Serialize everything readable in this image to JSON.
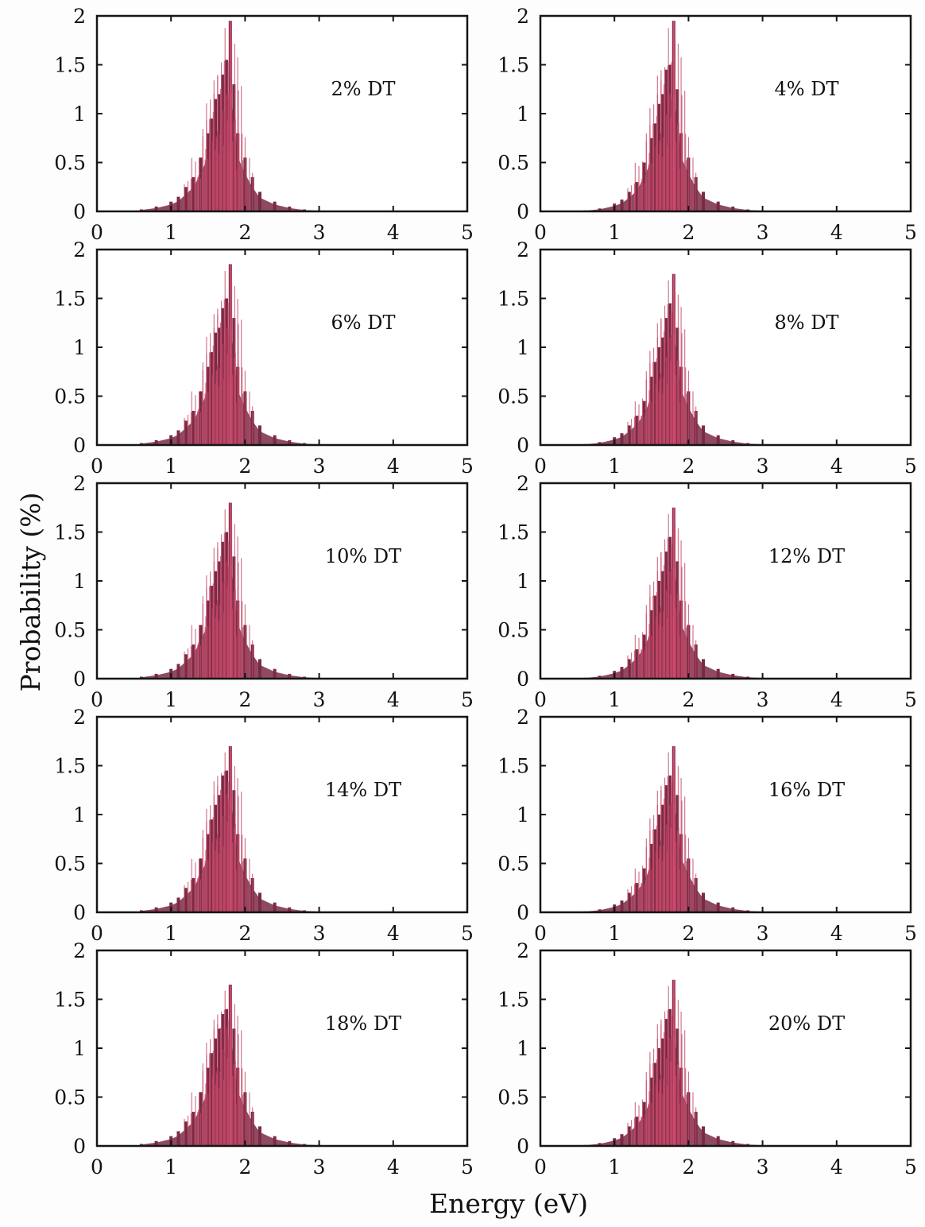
{
  "figure": {
    "xlabel": "Energy (eV)",
    "ylabel": "Probability (%)"
  },
  "chart_data": [
    {
      "type": "bar",
      "label": "2% DT",
      "x_ticks": [
        "0",
        "1",
        "2",
        "3",
        "4",
        "5"
      ],
      "y_ticks": [
        "0",
        "0.5",
        "1",
        "1.5",
        "2"
      ],
      "xlim": [
        0,
        5
      ],
      "ylim": [
        0,
        2
      ],
      "bar_color": "#7a2a45",
      "peak_energy": 1.8,
      "peak_value": 1.95,
      "x": [
        0.6,
        0.8,
        1.0,
        1.1,
        1.2,
        1.3,
        1.4,
        1.5,
        1.55,
        1.6,
        1.65,
        1.7,
        1.75,
        1.8,
        1.85,
        1.9,
        2.0,
        2.1,
        2.2,
        2.4,
        2.6,
        2.8,
        3.0
      ],
      "values": [
        0.02,
        0.05,
        0.1,
        0.15,
        0.25,
        0.35,
        0.55,
        0.8,
        0.95,
        1.15,
        1.2,
        1.4,
        1.55,
        1.95,
        1.3,
        0.8,
        0.55,
        0.35,
        0.2,
        0.1,
        0.05,
        0.02,
        0.01
      ]
    },
    {
      "type": "bar",
      "label": "4% DT",
      "x_ticks": [
        "0",
        "1",
        "2",
        "3",
        "4",
        "5"
      ],
      "y_ticks": [
        "0",
        "0.5",
        "1",
        "1.5",
        "2"
      ],
      "xlim": [
        0,
        5
      ],
      "ylim": [
        0,
        2
      ],
      "bar_color": "#7a2a45",
      "peak_energy": 1.8,
      "peak_value": 1.95,
      "x": [
        0.6,
        0.8,
        1.0,
        1.1,
        1.2,
        1.3,
        1.4,
        1.5,
        1.55,
        1.6,
        1.65,
        1.7,
        1.75,
        1.8,
        1.85,
        1.9,
        2.0,
        2.1,
        2.2,
        2.4,
        2.6,
        2.8,
        3.0
      ],
      "values": [
        0.01,
        0.03,
        0.08,
        0.12,
        0.2,
        0.3,
        0.5,
        0.75,
        0.9,
        1.1,
        1.2,
        1.45,
        1.5,
        1.95,
        1.25,
        0.8,
        0.55,
        0.35,
        0.2,
        0.1,
        0.05,
        0.02,
        0.01
      ]
    },
    {
      "type": "bar",
      "label": "6% DT",
      "x_ticks": [
        "0",
        "1",
        "2",
        "3",
        "4",
        "5"
      ],
      "y_ticks": [
        "0",
        "0.5",
        "1",
        "1.5",
        "2"
      ],
      "xlim": [
        0,
        5
      ],
      "ylim": [
        0,
        2
      ],
      "bar_color": "#7a2a45",
      "peak_energy": 1.8,
      "peak_value": 1.85,
      "x": [
        0.6,
        0.8,
        1.0,
        1.1,
        1.2,
        1.3,
        1.4,
        1.5,
        1.55,
        1.6,
        1.65,
        1.7,
        1.75,
        1.8,
        1.85,
        1.9,
        2.0,
        2.1,
        2.2,
        2.4,
        2.6,
        2.8,
        3.0
      ],
      "values": [
        0.02,
        0.05,
        0.1,
        0.15,
        0.25,
        0.35,
        0.55,
        0.8,
        0.95,
        1.15,
        1.2,
        1.4,
        1.5,
        1.85,
        1.3,
        0.8,
        0.55,
        0.35,
        0.2,
        0.1,
        0.05,
        0.02,
        0.01
      ]
    },
    {
      "type": "bar",
      "label": "8% DT",
      "x_ticks": [
        "0",
        "1",
        "2",
        "3",
        "4",
        "5"
      ],
      "y_ticks": [
        "0",
        "0.5",
        "1",
        "1.5",
        "2"
      ],
      "xlim": [
        0,
        5
      ],
      "ylim": [
        0,
        2
      ],
      "bar_color": "#7a2a45",
      "peak_energy": 1.8,
      "peak_value": 1.75,
      "x": [
        0.6,
        0.8,
        1.0,
        1.1,
        1.2,
        1.3,
        1.4,
        1.5,
        1.55,
        1.6,
        1.65,
        1.7,
        1.75,
        1.8,
        1.85,
        1.9,
        2.0,
        2.1,
        2.2,
        2.4,
        2.6,
        2.8,
        3.0
      ],
      "values": [
        0.01,
        0.03,
        0.08,
        0.12,
        0.2,
        0.3,
        0.45,
        0.7,
        0.85,
        1.0,
        1.1,
        1.3,
        1.45,
        1.75,
        1.2,
        0.8,
        0.55,
        0.35,
        0.2,
        0.1,
        0.05,
        0.02,
        0.01
      ]
    },
    {
      "type": "bar",
      "label": "10% DT",
      "x_ticks": [
        "0",
        "1",
        "2",
        "3",
        "4",
        "5"
      ],
      "y_ticks": [
        "0",
        "0.5",
        "1",
        "1.5",
        "2"
      ],
      "xlim": [
        0,
        5
      ],
      "ylim": [
        0,
        2
      ],
      "bar_color": "#7a2a45",
      "peak_energy": 1.8,
      "peak_value": 1.8,
      "x": [
        0.6,
        0.8,
        1.0,
        1.1,
        1.2,
        1.3,
        1.4,
        1.5,
        1.55,
        1.6,
        1.65,
        1.7,
        1.75,
        1.8,
        1.85,
        1.9,
        2.0,
        2.1,
        2.2,
        2.4,
        2.6,
        2.8,
        3.0
      ],
      "values": [
        0.02,
        0.05,
        0.1,
        0.15,
        0.25,
        0.35,
        0.55,
        0.8,
        0.95,
        1.1,
        1.2,
        1.4,
        1.5,
        1.8,
        1.25,
        0.8,
        0.55,
        0.35,
        0.2,
        0.1,
        0.05,
        0.02,
        0.01
      ]
    },
    {
      "type": "bar",
      "label": "12% DT",
      "x_ticks": [
        "0",
        "1",
        "2",
        "3",
        "4",
        "5"
      ],
      "y_ticks": [
        "0",
        "0.5",
        "1",
        "1.5",
        "2"
      ],
      "xlim": [
        0,
        5
      ],
      "ylim": [
        0,
        2
      ],
      "bar_color": "#7a2a45",
      "peak_energy": 1.8,
      "peak_value": 1.75,
      "x": [
        0.6,
        0.8,
        1.0,
        1.1,
        1.2,
        1.3,
        1.4,
        1.5,
        1.55,
        1.6,
        1.65,
        1.7,
        1.75,
        1.8,
        1.85,
        1.9,
        2.0,
        2.1,
        2.2,
        2.4,
        2.6,
        2.8,
        3.0
      ],
      "values": [
        0.01,
        0.03,
        0.08,
        0.12,
        0.2,
        0.3,
        0.45,
        0.7,
        0.85,
        1.0,
        1.1,
        1.3,
        1.45,
        1.75,
        1.2,
        0.8,
        0.55,
        0.35,
        0.2,
        0.1,
        0.05,
        0.02,
        0.01
      ]
    },
    {
      "type": "bar",
      "label": "14% DT",
      "x_ticks": [
        "0",
        "1",
        "2",
        "3",
        "4",
        "5"
      ],
      "y_ticks": [
        "0",
        "0.5",
        "1",
        "1.5",
        "2"
      ],
      "xlim": [
        0,
        5
      ],
      "ylim": [
        0,
        2
      ],
      "bar_color": "#7a2a45",
      "peak_energy": 1.8,
      "peak_value": 1.7,
      "x": [
        0.6,
        0.8,
        1.0,
        1.1,
        1.2,
        1.3,
        1.4,
        1.5,
        1.55,
        1.6,
        1.65,
        1.7,
        1.75,
        1.8,
        1.85,
        1.9,
        2.0,
        2.1,
        2.2,
        2.4,
        2.6,
        2.8,
        3.0
      ],
      "values": [
        0.02,
        0.05,
        0.1,
        0.15,
        0.25,
        0.35,
        0.55,
        0.8,
        0.95,
        1.1,
        1.2,
        1.4,
        1.45,
        1.7,
        1.25,
        0.8,
        0.55,
        0.35,
        0.2,
        0.1,
        0.05,
        0.02,
        0.01
      ]
    },
    {
      "type": "bar",
      "label": "16% DT",
      "x_ticks": [
        "0",
        "1",
        "2",
        "3",
        "4",
        "5"
      ],
      "y_ticks": [
        "0",
        "0.5",
        "1",
        "1.5",
        "2"
      ],
      "xlim": [
        0,
        5
      ],
      "ylim": [
        0,
        2
      ],
      "bar_color": "#7a2a45",
      "peak_energy": 1.8,
      "peak_value": 1.7,
      "x": [
        0.6,
        0.8,
        1.0,
        1.1,
        1.2,
        1.3,
        1.4,
        1.5,
        1.55,
        1.6,
        1.65,
        1.7,
        1.75,
        1.8,
        1.85,
        1.9,
        2.0,
        2.1,
        2.2,
        2.4,
        2.6,
        2.8,
        3.0
      ],
      "values": [
        0.01,
        0.03,
        0.08,
        0.12,
        0.2,
        0.3,
        0.45,
        0.7,
        0.85,
        1.0,
        1.1,
        1.3,
        1.4,
        1.7,
        1.2,
        0.8,
        0.55,
        0.35,
        0.2,
        0.1,
        0.05,
        0.02,
        0.01
      ]
    },
    {
      "type": "bar",
      "label": "18% DT",
      "x_ticks": [
        "0",
        "1",
        "2",
        "3",
        "4",
        "5"
      ],
      "y_ticks": [
        "0",
        "0.5",
        "1",
        "1.5",
        "2"
      ],
      "xlim": [
        0,
        5
      ],
      "ylim": [
        0,
        2
      ],
      "bar_color": "#7a2a45",
      "peak_energy": 1.8,
      "peak_value": 1.65,
      "x": [
        0.6,
        0.8,
        1.0,
        1.1,
        1.2,
        1.3,
        1.4,
        1.5,
        1.55,
        1.6,
        1.65,
        1.7,
        1.75,
        1.8,
        1.85,
        1.9,
        2.0,
        2.1,
        2.2,
        2.4,
        2.6,
        2.8,
        3.0
      ],
      "values": [
        0.02,
        0.05,
        0.1,
        0.15,
        0.25,
        0.35,
        0.55,
        0.8,
        0.95,
        1.1,
        1.2,
        1.35,
        1.4,
        1.65,
        1.2,
        0.8,
        0.55,
        0.35,
        0.2,
        0.1,
        0.05,
        0.02,
        0.01
      ]
    },
    {
      "type": "bar",
      "label": "20% DT",
      "x_ticks": [
        "0",
        "1",
        "2",
        "3",
        "4",
        "5"
      ],
      "y_ticks": [
        "0",
        "0.5",
        "1",
        "1.5",
        "2"
      ],
      "xlim": [
        0,
        5
      ],
      "ylim": [
        0,
        2
      ],
      "bar_color": "#7a2a45",
      "peak_energy": 1.8,
      "peak_value": 1.7,
      "x": [
        0.6,
        0.8,
        1.0,
        1.1,
        1.2,
        1.3,
        1.4,
        1.5,
        1.55,
        1.6,
        1.65,
        1.7,
        1.75,
        1.8,
        1.85,
        1.9,
        2.0,
        2.1,
        2.2,
        2.4,
        2.6,
        2.8,
        3.0
      ],
      "values": [
        0.01,
        0.03,
        0.08,
        0.12,
        0.2,
        0.3,
        0.45,
        0.7,
        0.85,
        1.0,
        1.1,
        1.3,
        1.4,
        1.7,
        1.2,
        0.8,
        0.55,
        0.35,
        0.2,
        0.1,
        0.05,
        0.02,
        0.01
      ]
    }
  ]
}
